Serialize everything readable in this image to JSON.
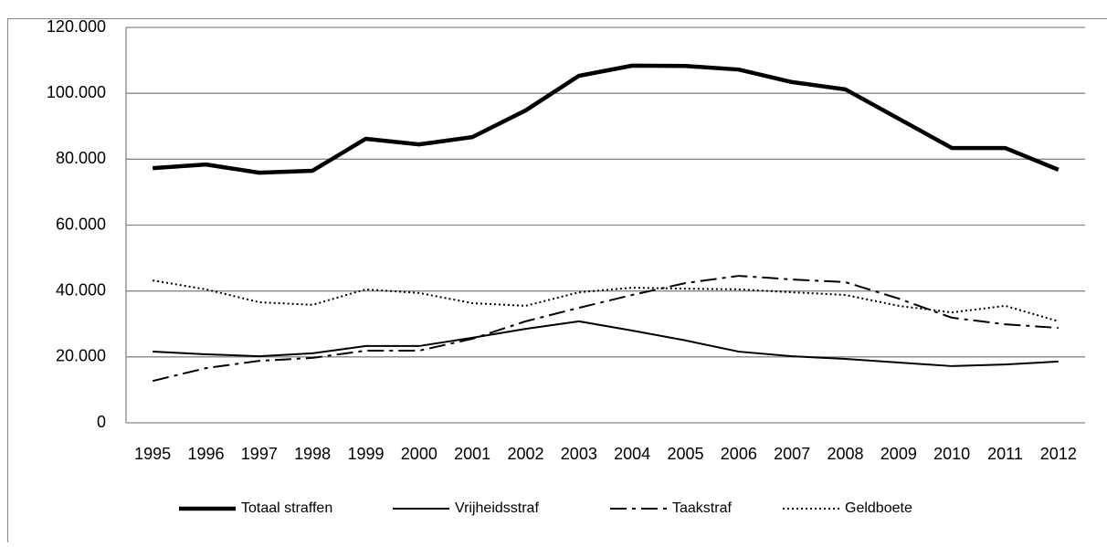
{
  "chart_data": {
    "type": "line",
    "categories": [
      "1995",
      "1996",
      "1997",
      "1998",
      "1999",
      "2000",
      "2001",
      "2002",
      "2003",
      "2004",
      "2005",
      "2006",
      "2007",
      "2008",
      "2009",
      "2010",
      "2011",
      "2012"
    ],
    "series": [
      {
        "name": "Totaal straffen",
        "color": "#000000",
        "linewidth": 4.5,
        "dash": "solid",
        "values": [
          77300,
          78400,
          75900,
          76500,
          86200,
          84500,
          86700,
          94800,
          105300,
          108400,
          108300,
          107200,
          103400,
          101200,
          92300,
          83400,
          83400,
          76800
        ]
      },
      {
        "name": "Vrijheidsstraf",
        "color": "#000000",
        "linewidth": 2,
        "dash": "solid",
        "values": [
          21600,
          20800,
          20200,
          21100,
          23300,
          23300,
          25800,
          28500,
          30800,
          28000,
          25000,
          21600,
          20200,
          19400,
          18300,
          17200,
          17700,
          18600
        ]
      },
      {
        "name": "Taakstraf",
        "color": "#000000",
        "linewidth": 2,
        "dash": "dashdot",
        "values": [
          12700,
          16600,
          18800,
          19700,
          21900,
          21900,
          25500,
          30800,
          34900,
          38800,
          42400,
          44600,
          43500,
          42700,
          37700,
          31900,
          29900,
          28800
        ]
      },
      {
        "name": "Geldboete",
        "color": "#000000",
        "linewidth": 2,
        "dash": "dotted",
        "values": [
          43200,
          40500,
          36600,
          35800,
          40500,
          39400,
          36300,
          35500,
          39600,
          41000,
          40700,
          40500,
          39600,
          38800,
          35500,
          33500,
          35500,
          30800
        ]
      }
    ],
    "ylim": [
      0,
      120000
    ],
    "yticks": [
      0,
      {
        "value": 20000,
        "label": "20.000"
      },
      {
        "value": 40000,
        "label": "40.000"
      },
      {
        "value": 60000,
        "label": "60.000"
      },
      {
        "value": 80000,
        "label": "80.000"
      },
      {
        "value": 100000,
        "label": "100.000"
      },
      {
        "value": 120000,
        "label": "120.000"
      }
    ],
    "grid": true,
    "legend": "bottom"
  }
}
